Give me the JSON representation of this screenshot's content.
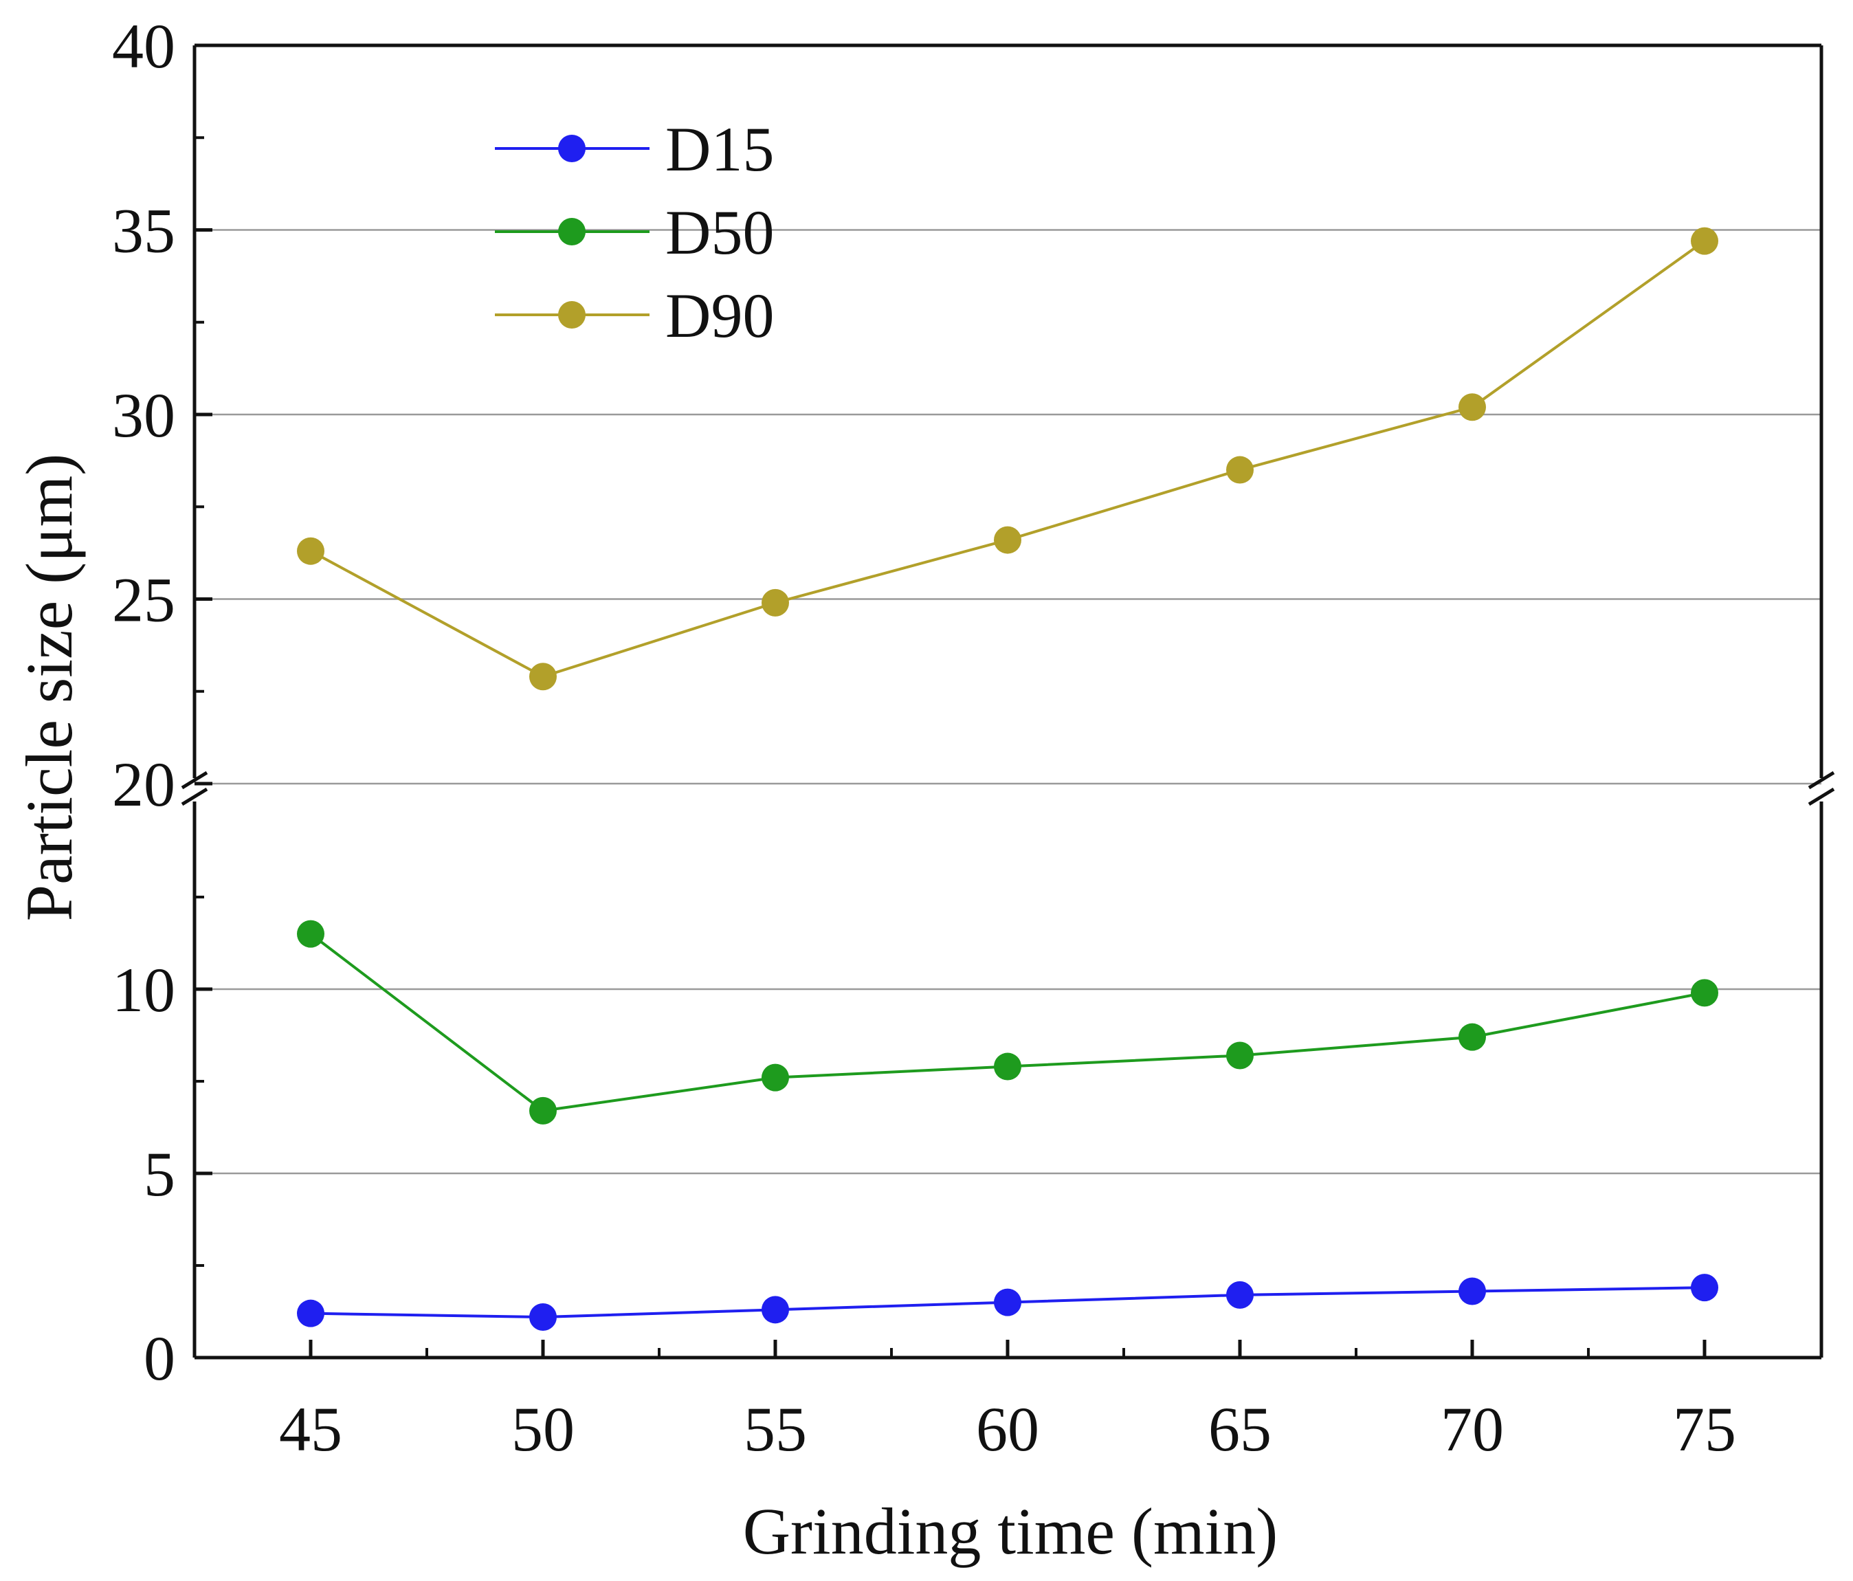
{
  "chart_data": {
    "type": "line",
    "title": "",
    "xlabel": "Grinding time (min)",
    "ylabel": "Particle size (μm)",
    "x": [
      45,
      50,
      55,
      60,
      65,
      70,
      75
    ],
    "x_tick_labels": [
      "45",
      "50",
      "55",
      "60",
      "65",
      "70",
      "75"
    ],
    "y_axis_break": {
      "lower_range": [
        0,
        15
      ],
      "upper_range": [
        20,
        40
      ]
    },
    "y_tick_labels_lower": [
      "0",
      "5",
      "10"
    ],
    "y_tick_labels_upper": [
      "20",
      "25",
      "30",
      "35",
      "40"
    ],
    "grid": "horizontal",
    "legend_position": "top-left",
    "series": [
      {
        "name": "D15",
        "color": "#1f1ff0",
        "values": [
          1.2,
          1.1,
          1.3,
          1.5,
          1.7,
          1.8,
          1.9
        ]
      },
      {
        "name": "D50",
        "color": "#1e9b1e",
        "values": [
          11.5,
          6.7,
          7.6,
          7.9,
          8.2,
          8.7,
          9.9
        ]
      },
      {
        "name": "D90",
        "color": "#b2a02a",
        "values": [
          26.3,
          22.9,
          24.9,
          26.6,
          28.5,
          30.2,
          34.7
        ]
      }
    ]
  }
}
